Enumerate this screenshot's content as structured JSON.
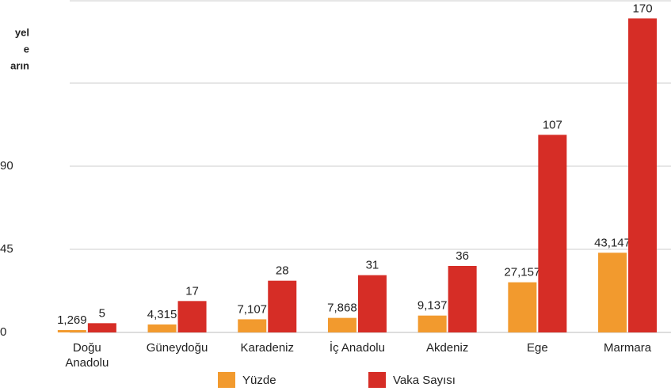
{
  "chart_data": {
    "type": "bar",
    "title": [
      "yel",
      "e",
      "arın"
    ],
    "categories": [
      "Doğu Anadolu",
      "Güneydoğu",
      "Karadeniz",
      "İç Anadolu",
      "Akdeniz",
      "Ege",
      "Marmara"
    ],
    "series": [
      {
        "name": "Yüzde",
        "color": "#f29a2e",
        "values": [
          1.269,
          4.315,
          7.107,
          7.868,
          9.137,
          27.157,
          43.147
        ],
        "value_labels": [
          "1,269",
          "4,315",
          "7,107",
          "7,868",
          "9,137",
          "27,157",
          "43,147"
        ]
      },
      {
        "name": "Vaka Sayısı",
        "color": "#d62d26",
        "values": [
          5,
          17,
          28,
          31,
          36,
          107,
          170
        ]
      }
    ],
    "ylim": [
      0,
      180
    ],
    "yticks": [
      0,
      45,
      90
    ],
    "grid": true
  }
}
